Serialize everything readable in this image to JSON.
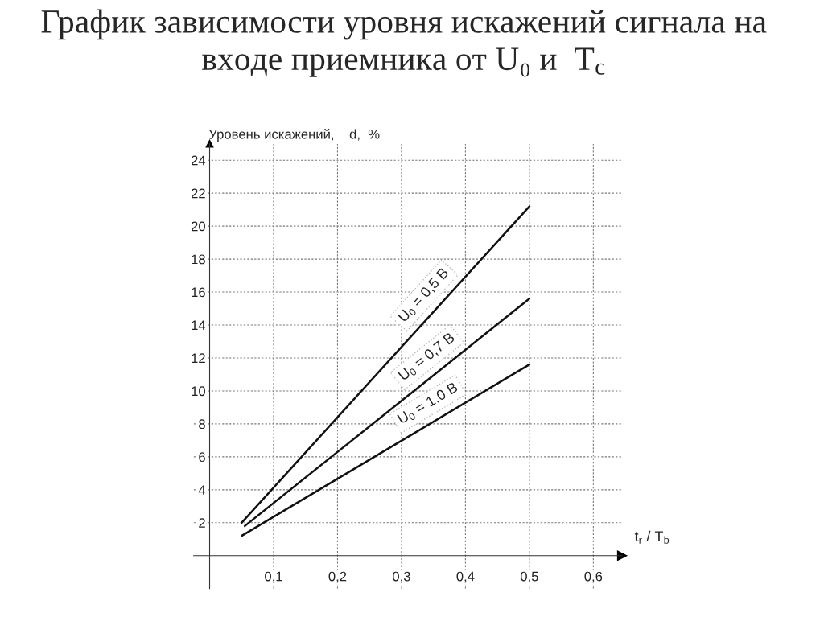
{
  "chart_data": {
    "type": "line",
    "title": "График зависимости уровня искажений сигнала на входе приемника от U₀ и  T$_{c}$",
    "xlabel": "t$_{r}$ / T$_{b}$",
    "ylabel": "Уровень искажений,    d,  %",
    "xlim": [
      -0.025,
      0.645
    ],
    "ylim": [
      -2,
      25
    ],
    "xticks": [
      {
        "value": 0.1,
        "label": "0,1"
      },
      {
        "value": 0.2,
        "label": "0,2"
      },
      {
        "value": 0.3,
        "label": "0,3"
      },
      {
        "value": 0.4,
        "label": "0,4"
      },
      {
        "value": 0.5,
        "label": "0,5"
      },
      {
        "value": 0.6,
        "label": "0,6"
      }
    ],
    "yticks": [
      2,
      4,
      6,
      8,
      10,
      12,
      14,
      16,
      18,
      20,
      22,
      24
    ],
    "grid": true,
    "line_style": "solid",
    "series": [
      {
        "name": "U$_{0}$ = 0,5 В",
        "color": "#111111",
        "x": [
          0.05,
          0.5
        ],
        "values": [
          2.0,
          21.2
        ]
      },
      {
        "name": "U$_{0}$ = 0,7 В",
        "color": "#111111",
        "x": [
          0.055,
          0.5
        ],
        "values": [
          1.8,
          15.6
        ]
      },
      {
        "name": "U$_{0}$ = 1,0 В",
        "color": "#111111",
        "x": [
          0.05,
          0.5
        ],
        "values": [
          1.2,
          11.6
        ]
      }
    ]
  }
}
